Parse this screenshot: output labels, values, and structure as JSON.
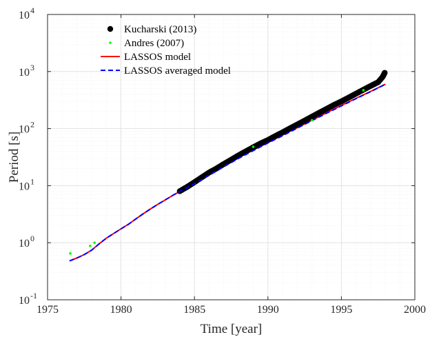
{
  "chart_data": {
    "type": "scatter",
    "title": "",
    "xlabel": "Time [year]",
    "ylabel": "Period [s]",
    "xlim": [
      1975,
      2000
    ],
    "ylim": [
      0.1,
      10000
    ],
    "yscale": "log",
    "grid": true,
    "minor_grid": true,
    "legend_position": "top-left",
    "x_ticks": [
      1975,
      1980,
      1985,
      1990,
      1995,
      2000
    ],
    "x_tick_labels": [
      "1975",
      "1980",
      "1985",
      "1990",
      "1995",
      "2000"
    ],
    "y_ticks": [
      0.1,
      1,
      10,
      100,
      1000,
      10000
    ],
    "y_tick_bases": [
      "10",
      "10",
      "10",
      "10",
      "10",
      "10"
    ],
    "y_tick_exponents": [
      "-1",
      "0",
      "1",
      "2",
      "3",
      "4"
    ],
    "series": [
      {
        "name": "Kucharski (2013)",
        "kind": "markers",
        "color": "#000000",
        "x": [
          1984.0,
          1984.5,
          1985.0,
          1985.5,
          1986.0,
          1986.5,
          1987.0,
          1987.5,
          1988.0,
          1988.5,
          1989.0,
          1989.5,
          1990.0,
          1990.5,
          1991.0,
          1991.5,
          1992.0,
          1992.5,
          1993.0,
          1993.5,
          1994.0,
          1994.5,
          1995.0,
          1995.5,
          1996.0,
          1996.5,
          1997.0,
          1997.5,
          1997.8,
          1997.95
        ],
        "y": [
          8,
          9.5,
          11.5,
          14,
          17,
          20,
          24,
          28.5,
          34,
          40,
          47,
          55,
          63,
          74,
          86,
          101,
          118,
          138,
          162,
          190,
          222,
          260,
          300,
          350,
          410,
          480,
          560,
          650,
          800,
          950
        ]
      },
      {
        "name": "Andres (2007)",
        "kind": "markers",
        "color": "#00ff00",
        "x": [
          1976.55,
          1977.9,
          1978.2,
          1989.0,
          1993.0,
          1996.5
        ],
        "y": [
          0.65,
          0.88,
          1.0,
          48,
          140,
          470
        ]
      },
      {
        "name": "LASSOS model",
        "kind": "line",
        "color": "#ff0000",
        "x": [
          1976.5,
          1977.0,
          1977.5,
          1978.0,
          1978.5,
          1979.0,
          1979.5,
          1980.0,
          1980.5,
          1981.0,
          1981.5,
          1982.0,
          1982.5,
          1983.0,
          1983.5,
          1984.0,
          1985.0,
          1986.0,
          1987.0,
          1988.0,
          1989.0,
          1990.0,
          1991.0,
          1992.0,
          1993.0,
          1994.0,
          1995.0,
          1996.0,
          1997.0,
          1998.0
        ],
        "y": [
          0.48,
          0.54,
          0.62,
          0.74,
          0.95,
          1.2,
          1.45,
          1.75,
          2.1,
          2.6,
          3.2,
          3.9,
          4.7,
          5.6,
          6.7,
          7.9,
          11,
          15.5,
          22,
          31,
          42,
          57,
          77,
          104,
          140,
          190,
          255,
          340,
          450,
          600
        ]
      },
      {
        "name": "LASSOS averaged model",
        "kind": "dashed-line",
        "color": "#0000ff",
        "x": [
          1976.5,
          1977.0,
          1977.5,
          1978.0,
          1978.5,
          1979.0,
          1979.5,
          1980.0,
          1980.5,
          1981.0,
          1981.5,
          1982.0,
          1982.5,
          1983.0,
          1983.5,
          1984.0,
          1985.0,
          1986.0,
          1987.0,
          1988.0,
          1989.0,
          1990.0,
          1991.0,
          1992.0,
          1993.0,
          1994.0,
          1995.0,
          1996.0,
          1997.0,
          1998.0
        ],
        "y": [
          0.48,
          0.54,
          0.62,
          0.74,
          0.95,
          1.2,
          1.45,
          1.75,
          2.1,
          2.6,
          3.2,
          3.9,
          4.7,
          5.6,
          6.7,
          7.9,
          10.8,
          15.2,
          21.5,
          30,
          41,
          56,
          75,
          102,
          138,
          186,
          250,
          335,
          445,
          600
        ]
      }
    ]
  }
}
